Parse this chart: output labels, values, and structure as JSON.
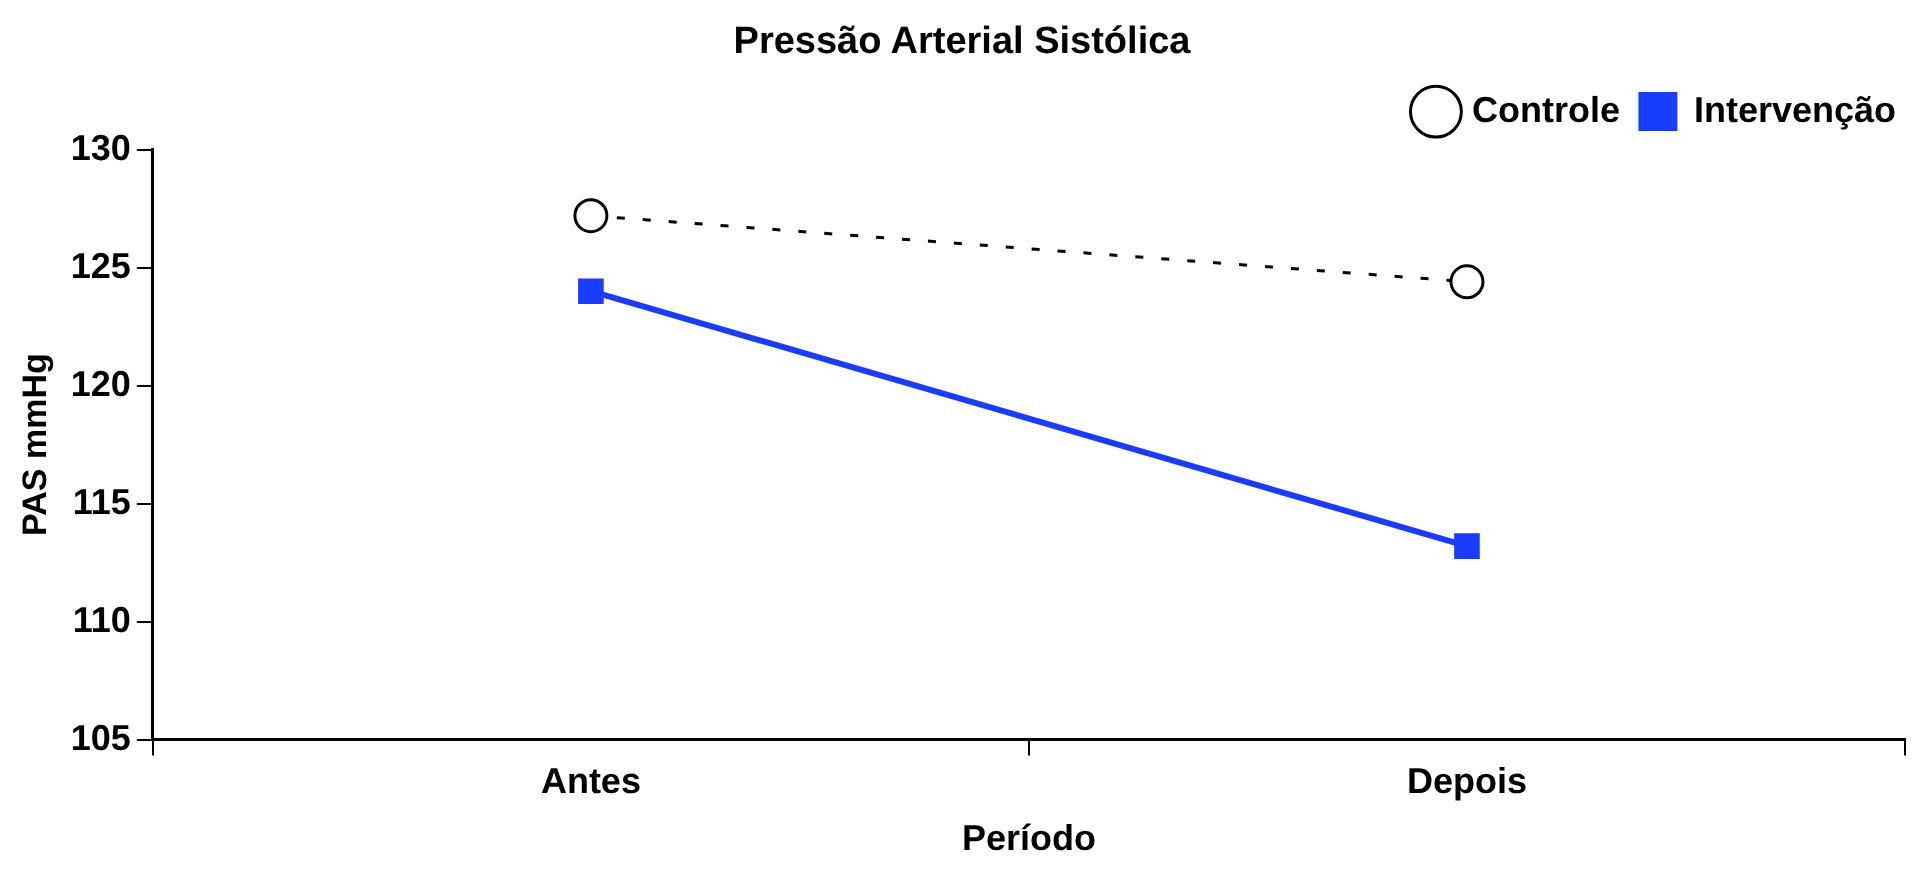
{
  "chart_data": {
    "type": "line",
    "title": "Pressão Arterial Sistólica",
    "xlabel": "Período",
    "ylabel": "PAS mmHg",
    "categories": [
      "Antes",
      "Depois"
    ],
    "series": [
      {
        "name": "Controle",
        "color": "#000000",
        "values": [
          127.2,
          124.4
        ],
        "marker": "circle",
        "line_style": "dashed"
      },
      {
        "name": "Intervenção",
        "color": "#1a3cff",
        "values": [
          124.0,
          113.2
        ],
        "marker": "square",
        "line_style": "solid"
      }
    ],
    "ylim": [
      105,
      130
    ],
    "yticks": [
      105,
      110,
      115,
      120,
      125,
      130
    ],
    "grid": false,
    "legend": "top right"
  }
}
